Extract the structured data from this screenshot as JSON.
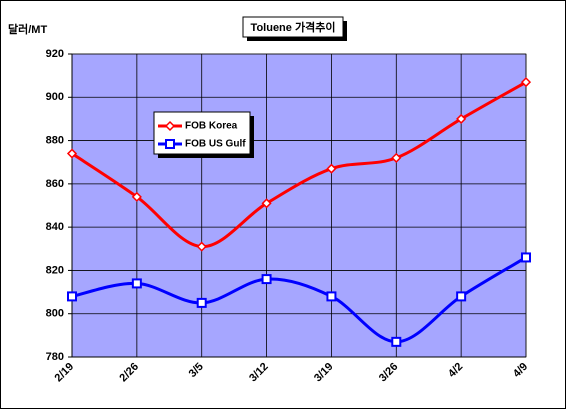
{
  "chart_data": {
    "type": "line",
    "title": "Toluene 가격추이",
    "y_label": "달러/MT",
    "categories": [
      "2/19",
      "2/26",
      "3/5",
      "3/12",
      "3/19",
      "3/26",
      "4/2",
      "4/9"
    ],
    "series": [
      {
        "name": "FOB Korea",
        "color": "#ff0000",
        "values": [
          874,
          854,
          831,
          851,
          867,
          872,
          890,
          907
        ]
      },
      {
        "name": "FOB US Gulf",
        "color": "#0000ff",
        "values": [
          808,
          814,
          805,
          816,
          808,
          787,
          808,
          826
        ]
      }
    ],
    "ylim": [
      780,
      920
    ],
    "yticks": [
      780,
      800,
      820,
      840,
      860,
      880,
      900,
      920
    ],
    "grid": true
  }
}
